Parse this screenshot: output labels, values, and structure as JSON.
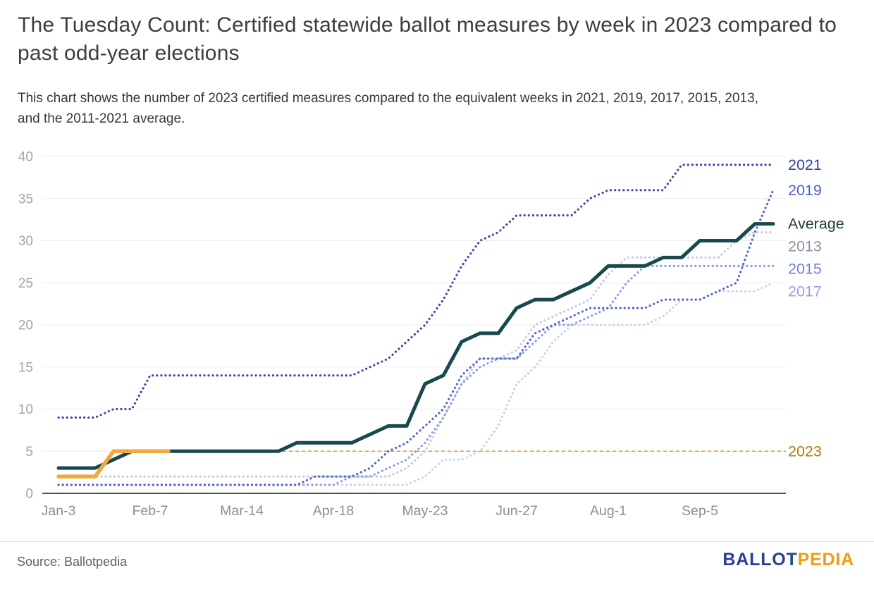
{
  "header": {
    "title": "The Tuesday Count: Certified statewide ballot measures by week in 2023 compared to past odd-year elections",
    "subtitle": "This chart shows the number of 2023 certified measures compared to the equivalent weeks in 2021, 2019, 2017, 2015, 2013, and the 2011-2021 average."
  },
  "footer": {
    "source": "Source: Ballotpedia",
    "logo": {
      "part1": "BALLOT",
      "part2": "PEDIA",
      "color1": "#26418f",
      "color2": "#f29b13"
    }
  },
  "chart_data": {
    "type": "line",
    "title": "The Tuesday Count: Certified statewide ballot measures by week in 2023 compared to past odd-year elections",
    "xlabel": "",
    "ylabel": "",
    "x_unit": "week-of-year (weekly points, Jan-3 through early October)",
    "x_tick_weeks": [
      0,
      5,
      10,
      15,
      20,
      25,
      30,
      35
    ],
    "x_tick_labels": [
      "Jan-3",
      "Feb-7",
      "Mar-14",
      "Apr-18",
      "May-23",
      "Jun-27",
      "Aug-1",
      "Sep-5"
    ],
    "ylim": [
      0,
      40
    ],
    "y_ticks": [
      0,
      5,
      10,
      15,
      20,
      25,
      30,
      35,
      40
    ],
    "grid": true,
    "legend_position": "labels-at-right-edge-of-lines",
    "series": [
      {
        "name": "2017",
        "style": "dotted",
        "color": "#c9d2f4",
        "label_color": "#93a1e0",
        "values": [
          1,
          1,
          1,
          1,
          1,
          1,
          1,
          1,
          1,
          1,
          1,
          1,
          1,
          1,
          1,
          1,
          1,
          1,
          1,
          1,
          2,
          4,
          4,
          5,
          8,
          13,
          15,
          18,
          20,
          20,
          20,
          20,
          20,
          21,
          23,
          23,
          24,
          24,
          24,
          25
        ]
      },
      {
        "name": "2013",
        "style": "dotted",
        "color": "#c5cae4",
        "label_color": "#8d93a4",
        "values": [
          2,
          2,
          2,
          2,
          2,
          2,
          2,
          2,
          2,
          2,
          2,
          2,
          2,
          2,
          2,
          2,
          2,
          2,
          2,
          3,
          5,
          9,
          13,
          16,
          16,
          17,
          20,
          21,
          22,
          23,
          26,
          28,
          28,
          28,
          28,
          28,
          28,
          30,
          31,
          31
        ]
      },
      {
        "name": "2015",
        "style": "dotted",
        "color": "#8b9ce8",
        "label_color": "#7081da",
        "values": [
          1,
          1,
          1,
          1,
          1,
          1,
          1,
          1,
          1,
          1,
          1,
          1,
          1,
          1,
          1,
          1,
          2,
          2,
          3,
          4,
          6,
          9,
          13,
          15,
          16,
          16,
          18,
          20,
          20,
          21,
          22,
          25,
          27,
          27,
          27,
          27,
          27,
          27,
          27,
          27
        ]
      },
      {
        "name": "2019",
        "style": "dotted",
        "color": "#5165cc",
        "label_color": "#4d60c6",
        "values": [
          1,
          1,
          1,
          1,
          1,
          1,
          1,
          1,
          1,
          1,
          1,
          1,
          1,
          1,
          2,
          2,
          2,
          3,
          5,
          6,
          8,
          10,
          14,
          16,
          16,
          16,
          19,
          20,
          21,
          22,
          22,
          22,
          22,
          23,
          23,
          23,
          24,
          25,
          31,
          36
        ]
      },
      {
        "name": "2021",
        "style": "dotted",
        "color": "#3a4ba5",
        "label_color": "#35479e",
        "values": [
          9,
          9,
          9,
          10,
          10,
          14,
          14,
          14,
          14,
          14,
          14,
          14,
          14,
          14,
          14,
          14,
          14,
          15,
          16,
          18,
          20,
          23,
          27,
          30,
          31,
          33,
          33,
          33,
          33,
          35,
          36,
          36,
          36,
          36,
          39,
          39,
          39,
          39,
          39,
          39
        ]
      },
      {
        "name": "Average",
        "style": "solid",
        "color": "#17494e",
        "label_color": "#233a3e",
        "values": [
          3,
          3,
          3,
          4,
          5,
          5,
          5,
          5,
          5,
          5,
          5,
          5,
          5,
          6,
          6,
          6,
          6,
          7,
          8,
          8,
          13,
          14,
          18,
          19,
          19,
          22,
          23,
          23,
          24,
          25,
          27,
          27,
          27,
          28,
          28,
          30,
          30,
          30,
          32,
          32
        ]
      },
      {
        "name": "2023",
        "style": "solid",
        "color": "#f3a83b",
        "label_color": "#ad7c0e",
        "values": [
          2,
          2,
          2,
          5,
          5,
          5,
          5
        ]
      }
    ],
    "extension_2023": {
      "value": 5,
      "from_week": 6,
      "color": "#e09b2d",
      "note": "dashed horizontal line extending 2023 current total of 5 across the chart"
    }
  }
}
